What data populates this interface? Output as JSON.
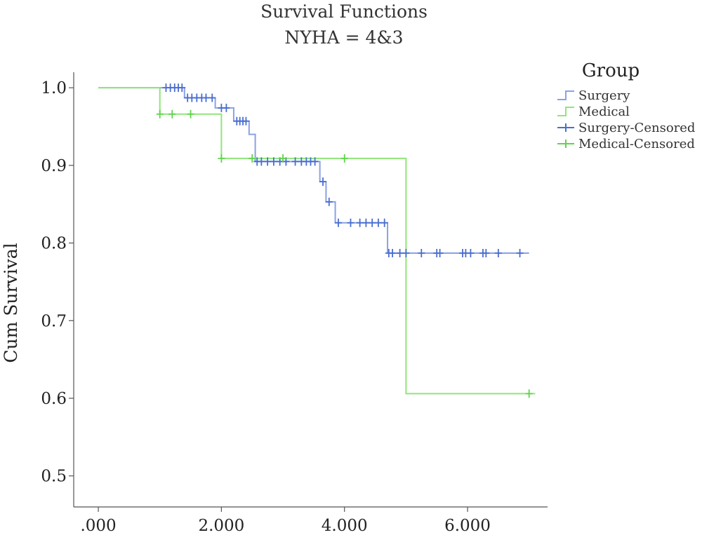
{
  "chart_data": {
    "type": "line",
    "title": "Survival Functions",
    "subtitle": "NYHA = 4&3",
    "xlabel": "",
    "ylabel": "Cum Survival",
    "xlim": [
      -0.4,
      7.3
    ],
    "ylim": [
      0.46,
      1.02
    ],
    "x_ticks": [
      0,
      2,
      4,
      6
    ],
    "x_tick_labels": [
      ".000",
      "2.000",
      "4.000",
      "6.000"
    ],
    "y_ticks": [
      1.0,
      0.9,
      0.8,
      0.7,
      0.6,
      0.5
    ],
    "y_tick_labels": [
      "1.0",
      "0.9",
      "0.8",
      "0.7",
      "0.6",
      "0.5"
    ],
    "legend": {
      "title": "Group",
      "position": "top-right",
      "entries": [
        "Surgery",
        "Medical",
        "Surgery-Censored",
        "Medical-Censored"
      ]
    },
    "series": [
      {
        "name": "Surgery",
        "color": "#8aa2e6",
        "censor_color": "#4a6ed0",
        "step_x": [
          0,
          1.4,
          1.9,
          2.2,
          2.45,
          2.55,
          3.6,
          3.7,
          3.85,
          4.7,
          7.0
        ],
        "step_y": [
          1.0,
          0.987,
          0.974,
          0.957,
          0.94,
          0.905,
          0.879,
          0.853,
          0.826,
          0.787,
          0.787
        ],
        "censored": [
          [
            1.1,
            1.0
          ],
          [
            1.17,
            1.0
          ],
          [
            1.24,
            1.0
          ],
          [
            1.3,
            1.0
          ],
          [
            1.36,
            1.0
          ],
          [
            1.45,
            0.987
          ],
          [
            1.52,
            0.987
          ],
          [
            1.6,
            0.987
          ],
          [
            1.68,
            0.987
          ],
          [
            1.75,
            0.987
          ],
          [
            1.85,
            0.987
          ],
          [
            2.0,
            0.974
          ],
          [
            2.08,
            0.974
          ],
          [
            2.25,
            0.957
          ],
          [
            2.3,
            0.957
          ],
          [
            2.35,
            0.957
          ],
          [
            2.4,
            0.957
          ],
          [
            2.58,
            0.905
          ],
          [
            2.65,
            0.905
          ],
          [
            2.75,
            0.905
          ],
          [
            2.85,
            0.905
          ],
          [
            2.95,
            0.905
          ],
          [
            3.05,
            0.905
          ],
          [
            3.2,
            0.905
          ],
          [
            3.3,
            0.905
          ],
          [
            3.38,
            0.905
          ],
          [
            3.45,
            0.905
          ],
          [
            3.52,
            0.905
          ],
          [
            3.65,
            0.879
          ],
          [
            3.75,
            0.853
          ],
          [
            3.9,
            0.826
          ],
          [
            4.1,
            0.826
          ],
          [
            4.25,
            0.826
          ],
          [
            4.35,
            0.826
          ],
          [
            4.45,
            0.826
          ],
          [
            4.55,
            0.826
          ],
          [
            4.65,
            0.826
          ],
          [
            4.72,
            0.787
          ],
          [
            4.78,
            0.787
          ],
          [
            4.9,
            0.787
          ],
          [
            5.0,
            0.787
          ],
          [
            5.25,
            0.787
          ],
          [
            5.5,
            0.787
          ],
          [
            5.55,
            0.787
          ],
          [
            5.92,
            0.787
          ],
          [
            5.97,
            0.787
          ],
          [
            6.05,
            0.787
          ],
          [
            6.25,
            0.787
          ],
          [
            6.3,
            0.787
          ],
          [
            6.5,
            0.787
          ],
          [
            6.85,
            0.787
          ]
        ]
      },
      {
        "name": "Medical",
        "color": "#8fe67a",
        "censor_color": "#5fd44a",
        "step_x": [
          0,
          1.0,
          2.0,
          5.0,
          7.1
        ],
        "step_y": [
          1.0,
          0.966,
          0.909,
          0.606,
          0.606
        ],
        "censored": [
          [
            1.0,
            0.966
          ],
          [
            1.2,
            0.966
          ],
          [
            1.5,
            0.966
          ],
          [
            2.0,
            0.909
          ],
          [
            2.5,
            0.909
          ],
          [
            3.0,
            0.909
          ],
          [
            4.0,
            0.909
          ],
          [
            7.0,
            0.606
          ]
        ]
      }
    ]
  }
}
